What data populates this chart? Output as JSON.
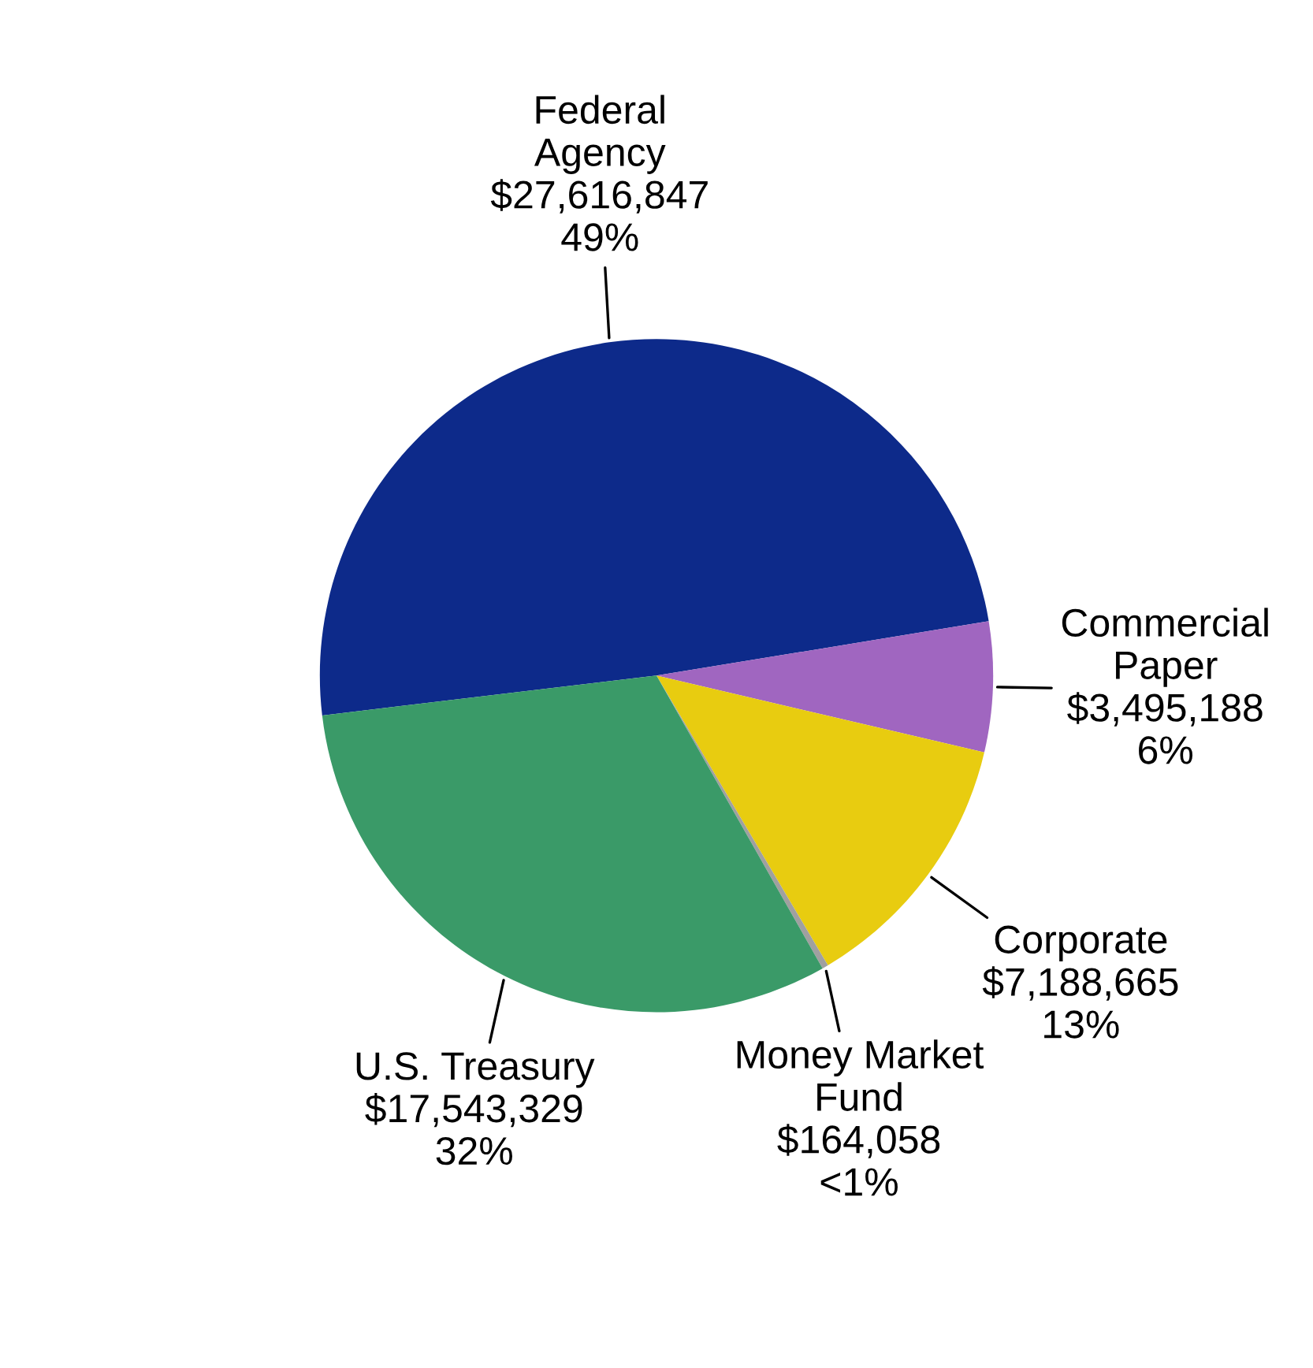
{
  "chart_data": {
    "type": "pie",
    "categories": [
      "Federal\nAgency",
      "Commercial\nPaper",
      "Corporate",
      "Money Market\nFund",
      "U.S. Treasury"
    ],
    "values": [
      27616847,
      3495188,
      7188665,
      164058,
      17543329
    ],
    "value_labels": [
      "$27,616,847\n49%",
      "$3,495,188\n6%",
      "$7,188,665\n13%",
      "$164,058\n<1%",
      "$17,543,329\n32%"
    ],
    "colors": [
      "#0d2a8a",
      "#a066c0",
      "#e8cc10",
      "#a0a0a0",
      "#3a9a68"
    ]
  }
}
